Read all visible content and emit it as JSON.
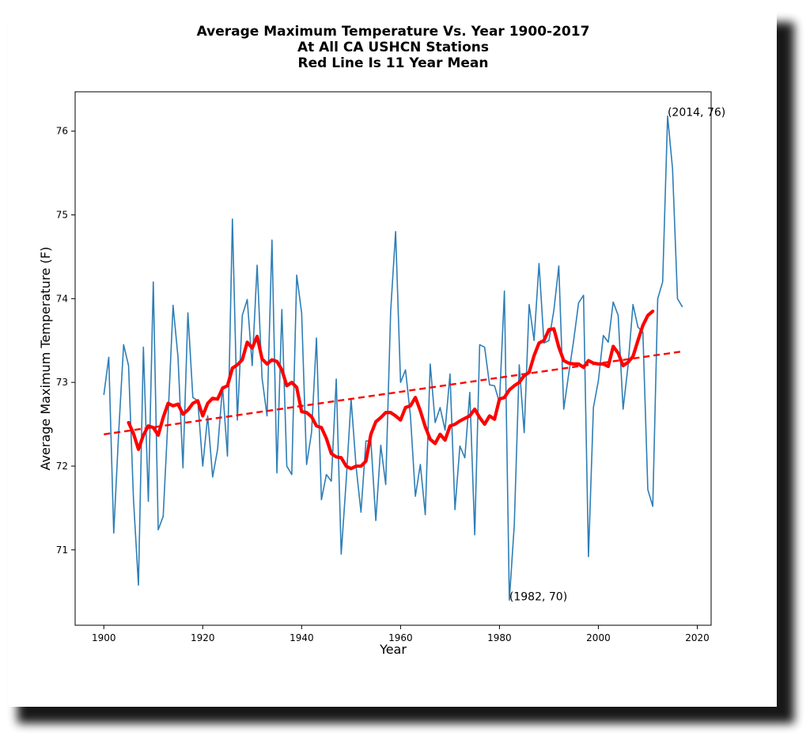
{
  "chart_data": {
    "type": "line",
    "title": [
      "Average Maximum Temperature Vs. Year 1900-2017",
      "At All CA USHCN Stations",
      "Red Line Is 11 Year Mean"
    ],
    "xlabel": "Year",
    "ylabel": "Average Maximum Temperature (F)",
    "xlim": [
      1894.2,
      2022.8
    ],
    "ylim": [
      70.1,
      76.47
    ],
    "xticks": [
      1900,
      1920,
      1940,
      1960,
      1980,
      2000,
      2020
    ],
    "yticks": [
      71,
      72,
      73,
      74,
      75,
      76
    ],
    "x_start": 1900,
    "annual": [
      72.85,
      73.3,
      71.2,
      72.4,
      73.45,
      73.2,
      71.6,
      70.58,
      73.42,
      71.58,
      74.2,
      71.24,
      71.4,
      72.6,
      73.92,
      73.3,
      71.98,
      73.83,
      72.82,
      72.78,
      72.0,
      72.6,
      71.87,
      72.2,
      72.95,
      72.12,
      74.95,
      72.55,
      73.8,
      73.99,
      73.2,
      74.4,
      73.05,
      72.6,
      74.7,
      71.92,
      73.87,
      72.0,
      71.9,
      74.28,
      73.83,
      72.02,
      72.4,
      73.53,
      71.6,
      71.9,
      71.82,
      73.04,
      70.95,
      71.82,
      72.8,
      72.0,
      71.45,
      72.3,
      72.3,
      71.35,
      72.25,
      71.78,
      73.85,
      74.8,
      73.0,
      73.15,
      72.6,
      71.64,
      72.02,
      71.42,
      73.22,
      72.52,
      72.7,
      72.43,
      73.1,
      71.48,
      72.24,
      72.1,
      72.88,
      71.18,
      73.45,
      73.42,
      72.97,
      72.96,
      72.76,
      74.09,
      70.4,
      71.3,
      73.21,
      72.4,
      73.93,
      73.5,
      74.42,
      73.47,
      73.5,
      73.86,
      74.39,
      72.68,
      73.1,
      73.5,
      73.95,
      74.04,
      70.92,
      72.7,
      73.02,
      73.56,
      73.48,
      73.96,
      73.8,
      72.68,
      73.2,
      73.93,
      73.66,
      73.6,
      71.72,
      71.52,
      74.0,
      74.2,
      76.18,
      75.55,
      74.0,
      73.9
    ],
    "mean_x_start": 1905,
    "mean_11yr": [
      72.52,
      72.39,
      72.2,
      72.37,
      72.48,
      72.46,
      72.37,
      72.58,
      72.75,
      72.72,
      72.74,
      72.62,
      72.67,
      72.75,
      72.78,
      72.6,
      72.75,
      72.81,
      72.8,
      72.93,
      72.96,
      73.17,
      73.21,
      73.27,
      73.48,
      73.41,
      73.55,
      73.28,
      73.22,
      73.27,
      73.25,
      73.15,
      72.96,
      73.0,
      72.94,
      72.65,
      72.64,
      72.59,
      72.48,
      72.46,
      72.33,
      72.15,
      72.11,
      72.1,
      72.0,
      71.97,
      72.0,
      72.0,
      72.06,
      72.38,
      72.53,
      72.58,
      72.64,
      72.64,
      72.6,
      72.55,
      72.7,
      72.72,
      72.82,
      72.66,
      72.47,
      72.32,
      72.27,
      72.38,
      72.31,
      72.48,
      72.5,
      72.54,
      72.57,
      72.6,
      72.68,
      72.58,
      72.5,
      72.6,
      72.56,
      72.8,
      72.82,
      72.91,
      72.96,
      73.0,
      73.08,
      73.12,
      73.32,
      73.47,
      73.5,
      73.63,
      73.64,
      73.42,
      73.26,
      73.23,
      73.22,
      73.22,
      73.18,
      73.26,
      73.23,
      73.22,
      73.22,
      73.19,
      73.43,
      73.35,
      73.2,
      73.24,
      73.31,
      73.5,
      73.68,
      73.8,
      73.85
    ],
    "trend": {
      "x": [
        1900,
        2017
      ],
      "y": [
        72.38,
        73.37
      ]
    },
    "annotations": [
      {
        "text": "(2014, 76)",
        "x": 2014,
        "y": 76.18
      },
      {
        "text": "(1982, 70)",
        "x": 1982,
        "y": 70.4
      }
    ],
    "colors": {
      "annual": "#2e7eb6",
      "mean": "#ff0000",
      "trend": "#ff0000"
    },
    "grid": false
  }
}
